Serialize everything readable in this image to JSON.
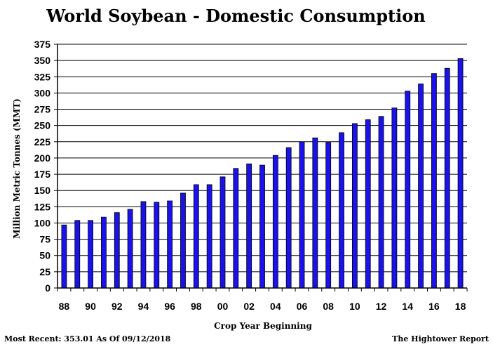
{
  "chart_data": {
    "type": "bar",
    "title": "World Soybean - Domestic Consumption",
    "xlabel": "Crop Year Beginning",
    "ylabel": "Million Metric Tonnes (MMT)",
    "ylim": [
      0,
      375
    ],
    "y_ticks": [
      0,
      25,
      50,
      75,
      100,
      125,
      150,
      175,
      200,
      225,
      250,
      275,
      300,
      325,
      350,
      375
    ],
    "grid": "horizontal",
    "bar_color": "#1a12e8",
    "categories": [
      "88",
      "89",
      "90",
      "91",
      "92",
      "93",
      "94",
      "95",
      "96",
      "97",
      "98",
      "99",
      "00",
      "01",
      "02",
      "03",
      "04",
      "05",
      "06",
      "07",
      "08",
      "09",
      "10",
      "11",
      "12",
      "13",
      "14",
      "15",
      "16",
      "17",
      "18"
    ],
    "x_tick_labels": [
      "88",
      "90",
      "92",
      "94",
      "96",
      "98",
      "00",
      "02",
      "04",
      "06",
      "08",
      "10",
      "12",
      "14",
      "16",
      "18"
    ],
    "values": [
      97,
      104,
      104,
      109,
      116,
      121,
      133,
      132,
      134,
      146,
      159,
      159,
      171,
      184,
      191,
      189,
      204,
      216,
      225,
      231,
      224,
      239,
      253,
      259,
      264,
      277,
      303,
      314,
      330,
      338,
      353
    ]
  },
  "footer": {
    "left": "Most Recent: 353.01 As Of 09/12/2018",
    "right": "The Hightower Report"
  }
}
